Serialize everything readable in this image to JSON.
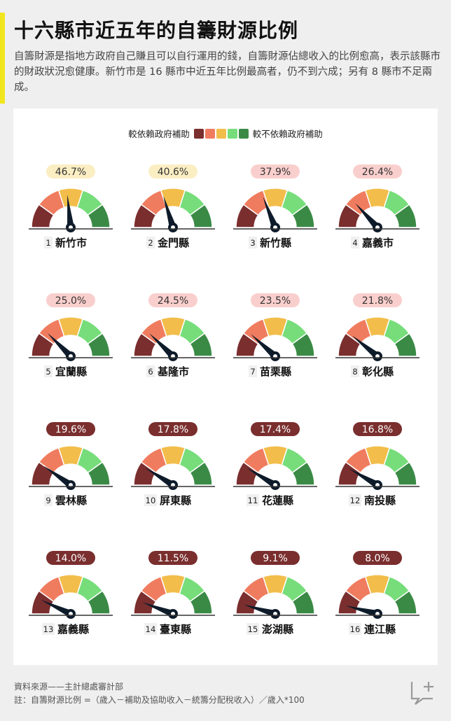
{
  "header": {
    "title": "十六縣市近五年的自籌財源比例",
    "subtitle": "自籌財源是指地方政府自己賺且可以自行運用的錢，自籌財源佔總收入的比例愈高，表示該縣市的財政狀況愈健康。新竹市是 16 縣市中近五年比例最高者，仍不到六成；另有 8 縣市不足兩成。"
  },
  "legend": {
    "left_label": "較依賴政府補助",
    "right_label": "較不依賴政府補助",
    "colors": [
      "#7a2e2e",
      "#f07c5f",
      "#f2bd4a",
      "#76dd7a",
      "#3a8a46"
    ]
  },
  "chart_data": {
    "type": "gauge",
    "title": "十六縣市近五年的自籌財源比例",
    "unit": "%",
    "range": [
      0,
      100
    ],
    "items": [
      {
        "rank": "1",
        "name": "新竹市",
        "value": 46.7,
        "label": "46.7%"
      },
      {
        "rank": "2",
        "name": "金門縣",
        "value": 40.6,
        "label": "40.6%"
      },
      {
        "rank": "3",
        "name": "新竹縣",
        "value": 37.9,
        "label": "37.9%"
      },
      {
        "rank": "4",
        "name": "嘉義市",
        "value": 26.4,
        "label": "26.4%"
      },
      {
        "rank": "5",
        "name": "宜蘭縣",
        "value": 25.0,
        "label": "25.0%"
      },
      {
        "rank": "6",
        "name": "基隆市",
        "value": 24.5,
        "label": "24.5%"
      },
      {
        "rank": "7",
        "name": "苗栗縣",
        "value": 23.5,
        "label": "23.5%"
      },
      {
        "rank": "8",
        "name": "彰化縣",
        "value": 21.8,
        "label": "21.8%"
      },
      {
        "rank": "9",
        "name": "雲林縣",
        "value": 19.6,
        "label": "19.6%"
      },
      {
        "rank": "10",
        "name": "屏東縣",
        "value": 17.8,
        "label": "17.8%"
      },
      {
        "rank": "11",
        "name": "花蓮縣",
        "value": 17.4,
        "label": "17.4%"
      },
      {
        "rank": "12",
        "name": "南投縣",
        "value": 16.8,
        "label": "16.8%"
      },
      {
        "rank": "13",
        "name": "嘉義縣",
        "value": 14.0,
        "label": "14.0%"
      },
      {
        "rank": "14",
        "name": "臺東縣",
        "value": 11.5,
        "label": "11.5%"
      },
      {
        "rank": "15",
        "name": "澎湖縣",
        "value": 9.1,
        "label": "9.1%"
      },
      {
        "rank": "16",
        "name": "連江縣",
        "value": 8.0,
        "label": "8.0%"
      }
    ],
    "badge_colors": {
      "light": "#fbeec3",
      "pink": "#f9cfcd",
      "dark": "#7a2e2e"
    }
  },
  "footer": {
    "source": "資料來源——主計總處審計部",
    "note": "註：自籌財源比例 =（歲入－補助及協助收入－統籌分配稅收入）／歲入*100"
  }
}
